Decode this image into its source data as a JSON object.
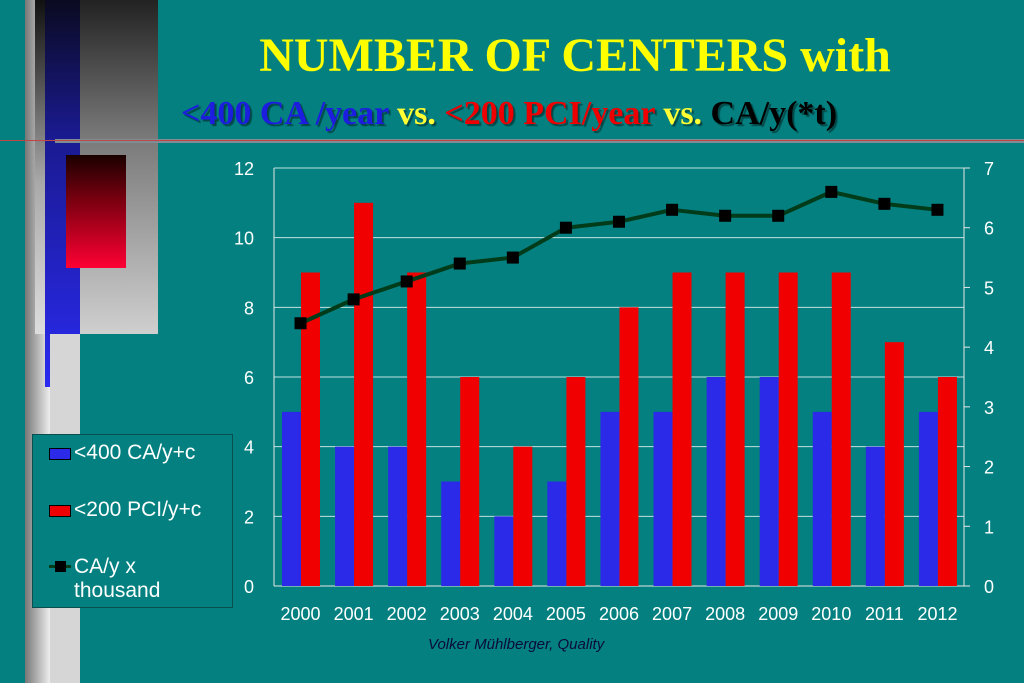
{
  "title": {
    "line1": "NUMBER OF CENTERS with",
    "line2_part1": "<400 CA /year",
    "line2_part2": " vs. ",
    "line2_part3": "<200 PCI/year",
    "line2_part4": " vs. ",
    "line2_part5": "CA/y(*t)"
  },
  "footer": "Volker Mühlberger, Quality",
  "legend": {
    "items": [
      {
        "label": "<400 CA/y+c"
      },
      {
        "label": "<200 PCI/y+c"
      },
      {
        "label_line1": "CA/y x",
        "label_line2": "thousand"
      }
    ]
  },
  "colors": {
    "background": "#048080",
    "blue_bar": "#2a2ae8",
    "red_bar": "#f00000",
    "line": "#003b1a",
    "marker": "#000000",
    "title": "#ffff00"
  },
  "chart_data": {
    "type": "bar",
    "categories": [
      "2000",
      "2001",
      "2002",
      "2003",
      "2004",
      "2005",
      "2006",
      "2007",
      "2008",
      "2009",
      "2010",
      "2011",
      "2012"
    ],
    "series": [
      {
        "name": "<400 CA/y+c",
        "type": "bar",
        "axis": "left",
        "values": [
          5,
          4,
          4,
          3,
          2,
          3,
          5,
          5,
          6,
          6,
          5,
          4,
          5
        ]
      },
      {
        "name": "<200 PCI/y+c",
        "type": "bar",
        "axis": "left",
        "values": [
          9,
          11,
          9,
          6,
          4,
          6,
          8,
          9,
          9,
          9,
          9,
          7,
          6
        ]
      },
      {
        "name": "CA/y x thousand",
        "type": "line",
        "axis": "right",
        "values": [
          4.4,
          4.8,
          5.1,
          5.4,
          5.5,
          6.0,
          6.1,
          6.3,
          6.2,
          6.2,
          6.6,
          6.4,
          6.3
        ]
      }
    ],
    "y_left": {
      "min": 0,
      "max": 12,
      "ticks": [
        "0",
        "2",
        "4",
        "6",
        "8",
        "10",
        "12"
      ]
    },
    "y_right": {
      "min": 0,
      "max": 7,
      "ticks": [
        "0",
        "1",
        "2",
        "3",
        "4",
        "5",
        "6",
        "7"
      ]
    },
    "grid": true
  }
}
